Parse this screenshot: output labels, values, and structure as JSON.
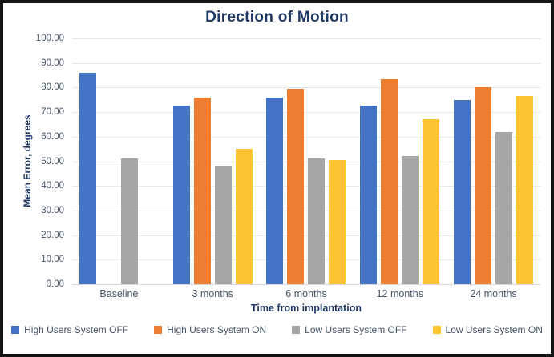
{
  "frame": {
    "border_color": "#141414",
    "background": "#FFFFFF"
  },
  "chart_data": {
    "type": "bar",
    "title": "Direction of Motion",
    "xlabel": "Time from implantation",
    "ylabel": "Mean Error, degrees",
    "ylim": [
      0,
      100
    ],
    "y_tick_labels": [
      "100.00",
      "90.00",
      "80.00",
      "70.00",
      "60.00",
      "50.00",
      "40.00",
      "30.00",
      "20.00",
      "10.00",
      "0.00"
    ],
    "categories": [
      "Baseline",
      "3 months",
      "6 months",
      "12 months",
      "24 months"
    ],
    "series": [
      {
        "name": "High Users System OFF",
        "color": "#4472C4",
        "values": [
          86,
          72.5,
          76,
          72.5,
          75
        ]
      },
      {
        "name": "High Users System ON",
        "color": "#ED7D31",
        "values": [
          null,
          76,
          79.5,
          83.5,
          80
        ]
      },
      {
        "name": "Low Users System OFF",
        "color": "#A6A6A6",
        "values": [
          51,
          48,
          51,
          52,
          62
        ]
      },
      {
        "name": "Low Users System ON",
        "color": "#FDC330",
        "values": [
          null,
          55,
          50.5,
          67,
          76.5
        ]
      }
    ],
    "grid": true,
    "legend_position": "bottom",
    "colors": {
      "title_text": "#1F3864",
      "axis_title_text": "#1F3864",
      "tick_text": "#44546A",
      "legend_text": "#44546A",
      "gridline": "#E7E7E7",
      "axis_line": "#D5D9DE"
    }
  }
}
